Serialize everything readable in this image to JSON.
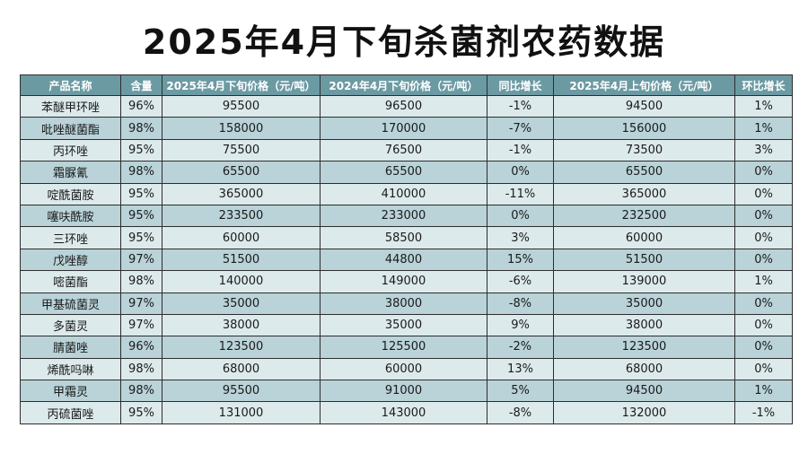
{
  "title": "2025年4月下旬杀菌剂农药数据",
  "chart_data": {
    "type": "table",
    "columns": [
      "产品名称",
      "含量",
      "2025年4月下旬价格（元/吨）",
      "2024年4月下旬价格（元/吨）",
      "同比增长",
      "2025年4月上旬价格（元/吨）",
      "环比增长"
    ],
    "rows": [
      [
        "苯醚甲环唑",
        "96%",
        "95500",
        "96500",
        "-1%",
        "94500",
        "1%"
      ],
      [
        "吡唑醚菌酯",
        "98%",
        "158000",
        "170000",
        "-7%",
        "156000",
        "1%"
      ],
      [
        "丙环唑",
        "95%",
        "75500",
        "76500",
        "-1%",
        "73500",
        "3%"
      ],
      [
        "霜脲氰",
        "98%",
        "65500",
        "65500",
        "0%",
        "65500",
        "0%"
      ],
      [
        "啶酰菌胺",
        "95%",
        "365000",
        "410000",
        "-11%",
        "365000",
        "0%"
      ],
      [
        "噻呋酰胺",
        "95%",
        "233500",
        "233000",
        "0%",
        "232500",
        "0%"
      ],
      [
        "三环唑",
        "95%",
        "60000",
        "58500",
        "3%",
        "60000",
        "0%"
      ],
      [
        "戊唑醇",
        "97%",
        "51500",
        "44800",
        "15%",
        "51500",
        "0%"
      ],
      [
        "嘧菌酯",
        "98%",
        "140000",
        "149000",
        "-6%",
        "139000",
        "1%"
      ],
      [
        "甲基硫菌灵",
        "97%",
        "35000",
        "38000",
        "-8%",
        "35000",
        "0%"
      ],
      [
        "多菌灵",
        "97%",
        "38000",
        "35000",
        "9%",
        "38000",
        "0%"
      ],
      [
        "腈菌唑",
        "96%",
        "123500",
        "125500",
        "-2%",
        "123500",
        "0%"
      ],
      [
        "烯酰吗啉",
        "98%",
        "68000",
        "60000",
        "13%",
        "68000",
        "0%"
      ],
      [
        "甲霜灵",
        "98%",
        "95500",
        "91000",
        "5%",
        "94500",
        "1%"
      ],
      [
        "丙硫菌唑",
        "95%",
        "131000",
        "143000",
        "-8%",
        "132000",
        "-1%"
      ]
    ]
  },
  "colors": {
    "header_bg": "#6c9aa3",
    "row_light": "#ddeaec",
    "row_dark": "#b9d3d8",
    "border": "#2d2d2d"
  }
}
